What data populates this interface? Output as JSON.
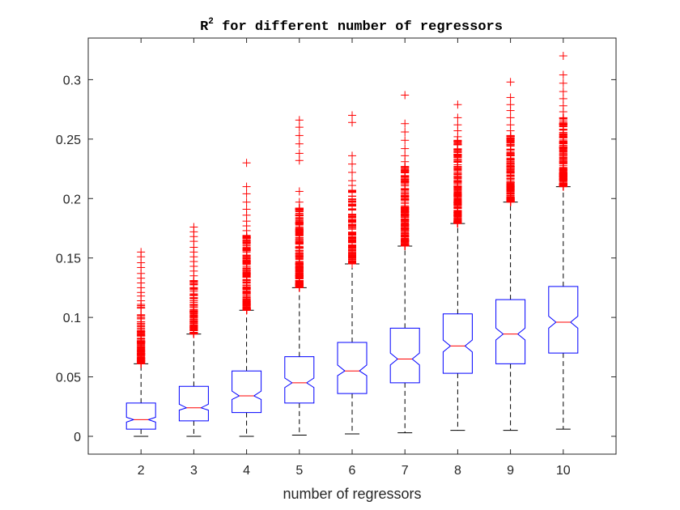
{
  "chart_data": {
    "type": "box",
    "title": "R",
    "title_superscript": "2",
    "title_rest": " for different number of regressors",
    "xlabel": "number of regressors",
    "ylabel": "",
    "categories": [
      "2",
      "3",
      "4",
      "5",
      "6",
      "7",
      "8",
      "9",
      "10"
    ],
    "ylim": [
      -0.015,
      0.335
    ],
    "yticks": [
      0,
      0.05,
      0.1,
      0.15,
      0.2,
      0.25,
      0.3
    ],
    "ytick_labels": [
      "0",
      "0.05",
      "0.1",
      "0.15",
      "0.2",
      "0.25",
      "0.3"
    ],
    "grid": false,
    "notched": true,
    "colors": {
      "box": "#0000ff",
      "median": "#ff0000",
      "whisker": "#000000",
      "outlier": "#ff0000",
      "axis": "#262626"
    },
    "boxes": [
      {
        "category": "2",
        "min": 0.0,
        "q1": 0.006,
        "median": 0.014,
        "q3": 0.028,
        "max": 0.061,
        "notch_low": 0.012,
        "notch_high": 0.016,
        "outlier_min": 0.061,
        "outlier_max": 0.155,
        "outlier_dense_max": 0.095,
        "outlier_extremes": [
          0.155,
          0.151,
          0.146,
          0.142,
          0.137,
          0.133,
          0.129,
          0.125,
          0.121,
          0.118,
          0.114,
          0.111
        ]
      },
      {
        "category": "3",
        "min": 0.0,
        "q1": 0.013,
        "median": 0.024,
        "q3": 0.042,
        "max": 0.086,
        "notch_low": 0.022,
        "notch_high": 0.027,
        "outlier_min": 0.086,
        "outlier_max": 0.176,
        "outlier_dense_max": 0.12,
        "outlier_extremes": [
          0.176,
          0.172,
          0.168,
          0.164,
          0.159,
          0.155,
          0.151,
          0.147,
          0.143,
          0.139,
          0.135,
          0.131
        ]
      },
      {
        "category": "4",
        "min": 0.0,
        "q1": 0.02,
        "median": 0.034,
        "q3": 0.055,
        "max": 0.106,
        "notch_low": 0.031,
        "notch_high": 0.038,
        "outlier_min": 0.106,
        "outlier_max": 0.23,
        "outlier_dense_max": 0.165,
        "outlier_extremes": [
          0.23,
          0.21,
          0.204,
          0.197,
          0.191,
          0.186,
          0.181,
          0.177,
          0.173,
          0.169
        ]
      },
      {
        "category": "5",
        "min": 0.001,
        "q1": 0.028,
        "median": 0.045,
        "q3": 0.067,
        "max": 0.125,
        "notch_low": 0.041,
        "notch_high": 0.049,
        "outlier_min": 0.125,
        "outlier_max": 0.266,
        "outlier_dense_max": 0.19,
        "outlier_extremes": [
          0.266,
          0.26,
          0.253,
          0.246,
          0.238,
          0.232,
          0.206,
          0.197,
          0.192
        ]
      },
      {
        "category": "6",
        "min": 0.002,
        "q1": 0.036,
        "median": 0.055,
        "q3": 0.079,
        "max": 0.145,
        "notch_low": 0.051,
        "notch_high": 0.06,
        "outlier_min": 0.145,
        "outlier_max": 0.27,
        "outlier_dense_max": 0.205,
        "outlier_extremes": [
          0.27,
          0.264,
          0.236,
          0.229,
          0.222,
          0.215,
          0.211,
          0.207
        ]
      },
      {
        "category": "7",
        "min": 0.003,
        "q1": 0.045,
        "median": 0.065,
        "q3": 0.091,
        "max": 0.16,
        "notch_low": 0.06,
        "notch_high": 0.07,
        "outlier_min": 0.16,
        "outlier_max": 0.287,
        "outlier_dense_max": 0.222,
        "outlier_extremes": [
          0.287,
          0.263,
          0.256,
          0.249,
          0.242,
          0.236,
          0.231,
          0.227
        ]
      },
      {
        "category": "8",
        "min": 0.005,
        "q1": 0.053,
        "median": 0.076,
        "q3": 0.103,
        "max": 0.179,
        "notch_low": 0.071,
        "notch_high": 0.081,
        "outlier_min": 0.179,
        "outlier_max": 0.279,
        "outlier_dense_max": 0.245,
        "outlier_extremes": [
          0.279,
          0.268,
          0.262,
          0.257,
          0.252,
          0.249
        ]
      },
      {
        "category": "9",
        "min": 0.005,
        "q1": 0.061,
        "median": 0.086,
        "q3": 0.115,
        "max": 0.197,
        "notch_low": 0.081,
        "notch_high": 0.091,
        "outlier_min": 0.197,
        "outlier_max": 0.298,
        "outlier_dense_max": 0.25,
        "outlier_extremes": [
          0.298,
          0.285,
          0.279,
          0.274,
          0.268,
          0.262,
          0.257,
          0.253
        ]
      },
      {
        "category": "10",
        "min": 0.006,
        "q1": 0.07,
        "median": 0.096,
        "q3": 0.126,
        "max": 0.21,
        "notch_low": 0.091,
        "notch_high": 0.101,
        "outlier_min": 0.21,
        "outlier_max": 0.32,
        "outlier_dense_max": 0.262,
        "outlier_extremes": [
          0.32,
          0.304,
          0.297,
          0.29,
          0.284,
          0.278,
          0.273,
          0.268
        ]
      }
    ]
  }
}
